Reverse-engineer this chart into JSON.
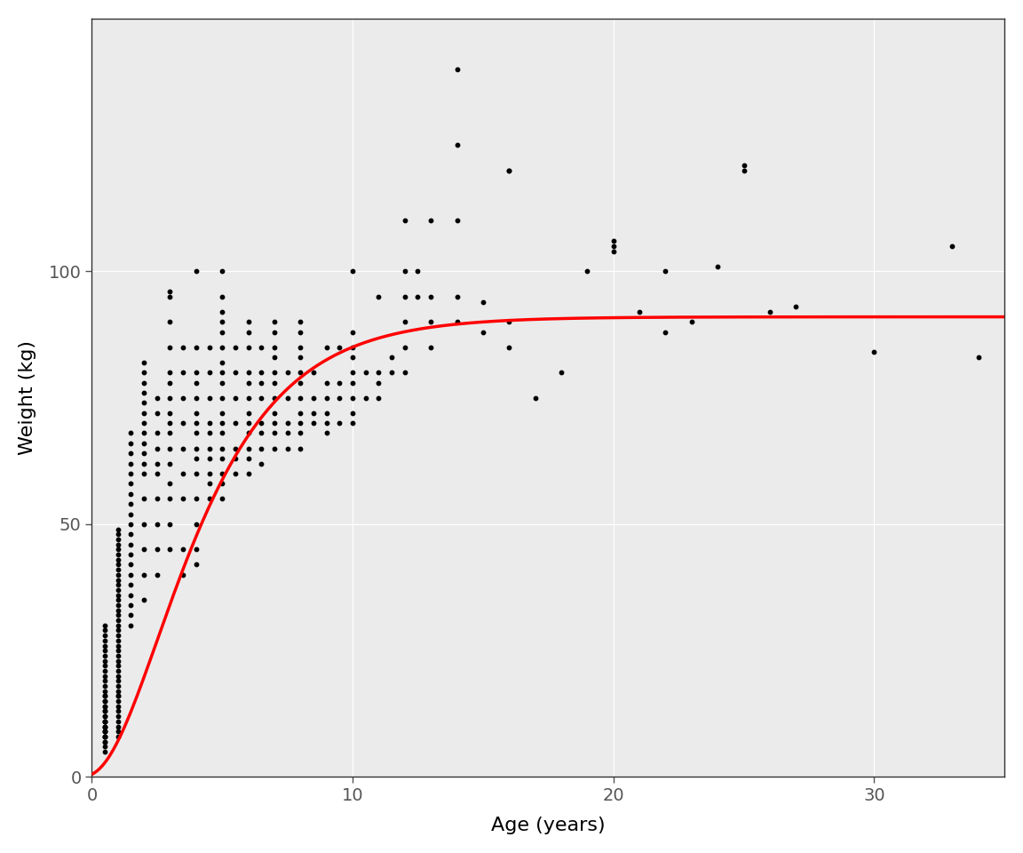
{
  "xlabel": "Age (years)",
  "ylabel": "Weight (kg)",
  "background_color": "#FFFFFF",
  "panel_background": "#EBEBEB",
  "grid_color": "#FFFFFF",
  "point_color": "#000000",
  "curve_color": "#FF0000",
  "xlim": [
    0,
    35
  ],
  "ylim": [
    0,
    150
  ],
  "xticks": [
    0,
    10,
    20,
    30
  ],
  "yticks": [
    0,
    50,
    100
  ],
  "curve_linewidth": 2.5,
  "point_size": 10,
  "vb_Winf": 91.0,
  "vb_K": 0.36,
  "vb_t0": -0.55,
  "scatter_data": [
    [
      0.5,
      5
    ],
    [
      0.5,
      6
    ],
    [
      0.5,
      7
    ],
    [
      0.5,
      8
    ],
    [
      0.5,
      9
    ],
    [
      0.5,
      10
    ],
    [
      0.5,
      11
    ],
    [
      0.5,
      12
    ],
    [
      0.5,
      13
    ],
    [
      0.5,
      14
    ],
    [
      0.5,
      15
    ],
    [
      0.5,
      16
    ],
    [
      0.5,
      17
    ],
    [
      0.5,
      18
    ],
    [
      0.5,
      19
    ],
    [
      0.5,
      20
    ],
    [
      0.5,
      21
    ],
    [
      0.5,
      22
    ],
    [
      0.5,
      23
    ],
    [
      0.5,
      24
    ],
    [
      0.5,
      25
    ],
    [
      0.5,
      26
    ],
    [
      0.5,
      27
    ],
    [
      0.5,
      28
    ],
    [
      0.5,
      29
    ],
    [
      0.5,
      30
    ],
    [
      0.5,
      8
    ],
    [
      0.5,
      9
    ],
    [
      0.5,
      10
    ],
    [
      0.5,
      11
    ],
    [
      0.5,
      12
    ],
    [
      0.5,
      13
    ],
    [
      0.5,
      14
    ],
    [
      0.5,
      15
    ],
    [
      0.5,
      16
    ],
    [
      0.5,
      7
    ],
    [
      0.5,
      8
    ],
    [
      0.5,
      9
    ],
    [
      0.5,
      10
    ],
    [
      0.5,
      11
    ],
    [
      1.0,
      8
    ],
    [
      1.0,
      9
    ],
    [
      1.0,
      10
    ],
    [
      1.0,
      11
    ],
    [
      1.0,
      12
    ],
    [
      1.0,
      13
    ],
    [
      1.0,
      14
    ],
    [
      1.0,
      15
    ],
    [
      1.0,
      16
    ],
    [
      1.0,
      17
    ],
    [
      1.0,
      18
    ],
    [
      1.0,
      19
    ],
    [
      1.0,
      20
    ],
    [
      1.0,
      21
    ],
    [
      1.0,
      22
    ],
    [
      1.0,
      23
    ],
    [
      1.0,
      24
    ],
    [
      1.0,
      25
    ],
    [
      1.0,
      26
    ],
    [
      1.0,
      27
    ],
    [
      1.0,
      28
    ],
    [
      1.0,
      29
    ],
    [
      1.0,
      30
    ],
    [
      1.0,
      31
    ],
    [
      1.0,
      32
    ],
    [
      1.0,
      33
    ],
    [
      1.0,
      34
    ],
    [
      1.0,
      35
    ],
    [
      1.0,
      36
    ],
    [
      1.0,
      37
    ],
    [
      1.0,
      38
    ],
    [
      1.0,
      39
    ],
    [
      1.0,
      40
    ],
    [
      1.0,
      41
    ],
    [
      1.0,
      42
    ],
    [
      1.0,
      43
    ],
    [
      1.0,
      44
    ],
    [
      1.0,
      45
    ],
    [
      1.0,
      46
    ],
    [
      1.0,
      47
    ],
    [
      1.0,
      48
    ],
    [
      1.0,
      49
    ],
    [
      1.0,
      16
    ],
    [
      1.5,
      30
    ],
    [
      1.5,
      32
    ],
    [
      1.5,
      34
    ],
    [
      1.5,
      36
    ],
    [
      1.5,
      38
    ],
    [
      1.5,
      40
    ],
    [
      1.5,
      42
    ],
    [
      1.5,
      44
    ],
    [
      1.5,
      46
    ],
    [
      1.5,
      48
    ],
    [
      1.5,
      50
    ],
    [
      1.5,
      52
    ],
    [
      1.5,
      54
    ],
    [
      1.5,
      56
    ],
    [
      1.5,
      58
    ],
    [
      1.5,
      60
    ],
    [
      1.5,
      62
    ],
    [
      1.5,
      64
    ],
    [
      1.5,
      66
    ],
    [
      1.5,
      68
    ],
    [
      2.0,
      35
    ],
    [
      2.0,
      40
    ],
    [
      2.0,
      45
    ],
    [
      2.0,
      50
    ],
    [
      2.0,
      55
    ],
    [
      2.0,
      60
    ],
    [
      2.0,
      62
    ],
    [
      2.0,
      64
    ],
    [
      2.0,
      66
    ],
    [
      2.0,
      68
    ],
    [
      2.0,
      70
    ],
    [
      2.0,
      72
    ],
    [
      2.0,
      74
    ],
    [
      2.0,
      76
    ],
    [
      2.0,
      78
    ],
    [
      2.0,
      80
    ],
    [
      2.0,
      82
    ],
    [
      2.5,
      40
    ],
    [
      2.5,
      45
    ],
    [
      2.5,
      50
    ],
    [
      2.5,
      55
    ],
    [
      2.5,
      60
    ],
    [
      2.5,
      62
    ],
    [
      2.5,
      65
    ],
    [
      2.5,
      68
    ],
    [
      2.5,
      72
    ],
    [
      2.5,
      75
    ],
    [
      3.0,
      45
    ],
    [
      3.0,
      50
    ],
    [
      3.0,
      55
    ],
    [
      3.0,
      58
    ],
    [
      3.0,
      62
    ],
    [
      3.0,
      65
    ],
    [
      3.0,
      68
    ],
    [
      3.0,
      70
    ],
    [
      3.0,
      72
    ],
    [
      3.0,
      75
    ],
    [
      3.0,
      78
    ],
    [
      3.0,
      80
    ],
    [
      3.0,
      85
    ],
    [
      3.0,
      90
    ],
    [
      3.0,
      95
    ],
    [
      3.0,
      96
    ],
    [
      3.5,
      40
    ],
    [
      3.5,
      45
    ],
    [
      3.5,
      55
    ],
    [
      3.5,
      60
    ],
    [
      3.5,
      65
    ],
    [
      3.5,
      70
    ],
    [
      3.5,
      75
    ],
    [
      3.5,
      80
    ],
    [
      3.5,
      85
    ],
    [
      4.0,
      42
    ],
    [
      4.0,
      45
    ],
    [
      4.0,
      50
    ],
    [
      4.0,
      55
    ],
    [
      4.0,
      60
    ],
    [
      4.0,
      63
    ],
    [
      4.0,
      65
    ],
    [
      4.0,
      68
    ],
    [
      4.0,
      70
    ],
    [
      4.0,
      72
    ],
    [
      4.0,
      75
    ],
    [
      4.0,
      78
    ],
    [
      4.0,
      80
    ],
    [
      4.0,
      85
    ],
    [
      4.0,
      100
    ],
    [
      4.5,
      55
    ],
    [
      4.5,
      58
    ],
    [
      4.5,
      60
    ],
    [
      4.5,
      63
    ],
    [
      4.5,
      65
    ],
    [
      4.5,
      68
    ],
    [
      4.5,
      70
    ],
    [
      4.5,
      75
    ],
    [
      4.5,
      80
    ],
    [
      4.5,
      85
    ],
    [
      5.0,
      55
    ],
    [
      5.0,
      58
    ],
    [
      5.0,
      60
    ],
    [
      5.0,
      63
    ],
    [
      5.0,
      65
    ],
    [
      5.0,
      68
    ],
    [
      5.0,
      70
    ],
    [
      5.0,
      72
    ],
    [
      5.0,
      75
    ],
    [
      5.0,
      78
    ],
    [
      5.0,
      80
    ],
    [
      5.0,
      82
    ],
    [
      5.0,
      85
    ],
    [
      5.0,
      88
    ],
    [
      5.0,
      90
    ],
    [
      5.0,
      92
    ],
    [
      5.0,
      95
    ],
    [
      5.0,
      100
    ],
    [
      5.5,
      60
    ],
    [
      5.5,
      63
    ],
    [
      5.5,
      65
    ],
    [
      5.5,
      70
    ],
    [
      5.5,
      75
    ],
    [
      5.5,
      80
    ],
    [
      5.5,
      85
    ],
    [
      6.0,
      60
    ],
    [
      6.0,
      63
    ],
    [
      6.0,
      65
    ],
    [
      6.0,
      68
    ],
    [
      6.0,
      70
    ],
    [
      6.0,
      72
    ],
    [
      6.0,
      75
    ],
    [
      6.0,
      78
    ],
    [
      6.0,
      80
    ],
    [
      6.0,
      85
    ],
    [
      6.0,
      88
    ],
    [
      6.0,
      90
    ],
    [
      6.5,
      62
    ],
    [
      6.5,
      65
    ],
    [
      6.5,
      68
    ],
    [
      6.5,
      70
    ],
    [
      6.5,
      75
    ],
    [
      6.5,
      78
    ],
    [
      6.5,
      80
    ],
    [
      6.5,
      85
    ],
    [
      7.0,
      65
    ],
    [
      7.0,
      68
    ],
    [
      7.0,
      70
    ],
    [
      7.0,
      72
    ],
    [
      7.0,
      75
    ],
    [
      7.0,
      78
    ],
    [
      7.0,
      80
    ],
    [
      7.0,
      83
    ],
    [
      7.0,
      85
    ],
    [
      7.0,
      88
    ],
    [
      7.0,
      90
    ],
    [
      7.5,
      65
    ],
    [
      7.5,
      68
    ],
    [
      7.5,
      70
    ],
    [
      7.5,
      75
    ],
    [
      7.5,
      80
    ],
    [
      8.0,
      65
    ],
    [
      8.0,
      68
    ],
    [
      8.0,
      70
    ],
    [
      8.0,
      72
    ],
    [
      8.0,
      75
    ],
    [
      8.0,
      78
    ],
    [
      8.0,
      80
    ],
    [
      8.0,
      83
    ],
    [
      8.0,
      85
    ],
    [
      8.0,
      88
    ],
    [
      8.0,
      90
    ],
    [
      8.5,
      70
    ],
    [
      8.5,
      72
    ],
    [
      8.5,
      75
    ],
    [
      8.5,
      80
    ],
    [
      9.0,
      68
    ],
    [
      9.0,
      70
    ],
    [
      9.0,
      72
    ],
    [
      9.0,
      75
    ],
    [
      9.0,
      78
    ],
    [
      9.0,
      85
    ],
    [
      9.5,
      70
    ],
    [
      9.5,
      75
    ],
    [
      9.5,
      78
    ],
    [
      9.5,
      85
    ],
    [
      10.0,
      70
    ],
    [
      10.0,
      72
    ],
    [
      10.0,
      75
    ],
    [
      10.0,
      78
    ],
    [
      10.0,
      80
    ],
    [
      10.0,
      83
    ],
    [
      10.0,
      85
    ],
    [
      10.0,
      88
    ],
    [
      10.0,
      100
    ],
    [
      10.5,
      75
    ],
    [
      10.5,
      80
    ],
    [
      11.0,
      75
    ],
    [
      11.0,
      78
    ],
    [
      11.0,
      80
    ],
    [
      11.0,
      95
    ],
    [
      11.5,
      80
    ],
    [
      11.5,
      83
    ],
    [
      12.0,
      80
    ],
    [
      12.0,
      85
    ],
    [
      12.0,
      90
    ],
    [
      12.0,
      95
    ],
    [
      12.0,
      100
    ],
    [
      12.5,
      95
    ],
    [
      12.5,
      100
    ],
    [
      13.0,
      85
    ],
    [
      13.0,
      90
    ],
    [
      13.0,
      95
    ],
    [
      14.0,
      90
    ],
    [
      14.0,
      95
    ],
    [
      15.0,
      88
    ],
    [
      15.0,
      94
    ],
    [
      16.0,
      85
    ],
    [
      16.0,
      90
    ],
    [
      17.0,
      75
    ],
    [
      18.0,
      80
    ],
    [
      19.0,
      100
    ],
    [
      20.0,
      104
    ],
    [
      20.0,
      106
    ],
    [
      21.0,
      92
    ],
    [
      22.0,
      88
    ],
    [
      23.0,
      90
    ],
    [
      25.0,
      120
    ],
    [
      25.0,
      121
    ],
    [
      26.0,
      92
    ],
    [
      27.0,
      93
    ],
    [
      30.0,
      84
    ],
    [
      33.0,
      105
    ],
    [
      34.0,
      83
    ],
    [
      14.0,
      110
    ],
    [
      14.0,
      125
    ],
    [
      14.0,
      140
    ],
    [
      12.0,
      110
    ],
    [
      13.0,
      110
    ],
    [
      16.0,
      120
    ],
    [
      16.0,
      120
    ],
    [
      20.0,
      105
    ],
    [
      22.0,
      100
    ],
    [
      24.0,
      101
    ]
  ]
}
